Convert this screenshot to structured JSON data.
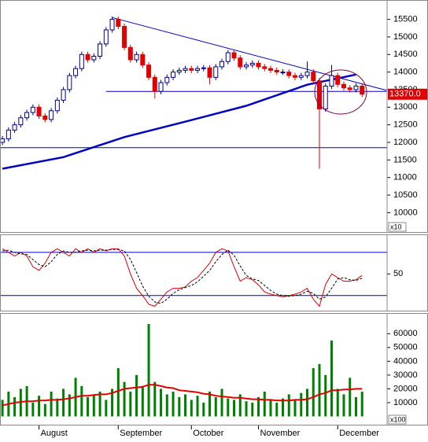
{
  "chart_data": [
    {
      "type": "candlestick",
      "xlim": [
        -0.4,
        63.1
      ],
      "ylim": [
        9450,
        16050
      ],
      "yticks": [
        10000,
        10500,
        11000,
        11500,
        12000,
        12500,
        13000,
        13500,
        14000,
        14500,
        15000,
        15500
      ],
      "axis_unit": "x10",
      "up_color": "#00008b",
      "down_color": "#e00000",
      "open": [
        12000,
        12100,
        12350,
        12500,
        12700,
        12850,
        13000,
        12750,
        12650,
        12900,
        13200,
        13500,
        13900,
        14100,
        14500,
        14350,
        14450,
        14800,
        15200,
        15500,
        15300,
        14700,
        14350,
        14500,
        14200,
        13850,
        13450,
        13700,
        13850,
        14000,
        14050,
        14100,
        14050,
        14100,
        14120,
        13850,
        14150,
        14300,
        14550,
        14400,
        14150,
        14200,
        14250,
        14150,
        14100,
        14050,
        14000,
        14000,
        13900,
        13850,
        13900,
        14000,
        13750,
        12950,
        13600,
        13900,
        13650,
        13550,
        13500,
        13600
      ],
      "high": [
        12180,
        12430,
        12580,
        12780,
        12930,
        13080,
        13080,
        12830,
        12980,
        13280,
        13580,
        13980,
        14180,
        14580,
        14580,
        14530,
        14880,
        15280,
        15580,
        15580,
        15380,
        14780,
        14580,
        14580,
        14280,
        13930,
        13780,
        13930,
        14080,
        14130,
        14180,
        14180,
        14180,
        14200,
        14200,
        14230,
        14380,
        14630,
        14630,
        14480,
        14280,
        14330,
        14330,
        14230,
        14180,
        14130,
        14080,
        14080,
        13980,
        13980,
        14300,
        14080,
        13830,
        13680,
        14200,
        13980,
        13730,
        13630,
        13680,
        13680
      ],
      "low": [
        11920,
        12020,
        12270,
        12420,
        12620,
        12770,
        12670,
        12570,
        12570,
        12820,
        13120,
        13420,
        13820,
        14020,
        14270,
        14270,
        14370,
        14720,
        15120,
        15220,
        14620,
        14270,
        14270,
        14120,
        13770,
        13250,
        13370,
        13620,
        13770,
        13920,
        13970,
        13970,
        13970,
        14020,
        13650,
        13770,
        14070,
        14220,
        14320,
        14070,
        14070,
        14120,
        14070,
        14020,
        13970,
        13920,
        13920,
        13820,
        13770,
        13770,
        13820,
        13670,
        11250,
        12870,
        13520,
        13570,
        13470,
        13420,
        13420,
        13290
      ],
      "close": [
        12100,
        12350,
        12500,
        12700,
        12850,
        13000,
        12750,
        12650,
        12900,
        13200,
        13500,
        13900,
        14100,
        14500,
        14350,
        14450,
        14800,
        15200,
        15500,
        15300,
        14700,
        14350,
        14500,
        14200,
        13850,
        13450,
        13700,
        13850,
        14000,
        14050,
        14100,
        14050,
        14100,
        14120,
        13850,
        14150,
        14300,
        14550,
        14400,
        14150,
        14200,
        14250,
        14150,
        14100,
        14050,
        14000,
        14000,
        13900,
        13850,
        13900,
        14000,
        13750,
        12950,
        13600,
        13900,
        13650,
        13550,
        13500,
        13600,
        13370
      ],
      "moving_average": {
        "color": "#0000c0",
        "x": [
          0,
          10,
          20,
          30,
          40,
          50,
          58
        ],
        "values": [
          11250,
          11580,
          12150,
          12590,
          13040,
          13640,
          13930
        ]
      },
      "trendline": {
        "color": "#0000c0",
        "x": [
          18,
          63
        ],
        "values": [
          15550,
          13480
        ]
      },
      "levels": [
        {
          "value": 13450,
          "x": [
            17,
            63
          ]
        },
        {
          "value": 11850,
          "x": [
            -0.4,
            63.1
          ]
        }
      ],
      "last_price": {
        "value": 13370,
        "label": "13370.0"
      }
    },
    {
      "type": "line",
      "xlim": [
        -0.4,
        63.1
      ],
      "ylim": [
        -1,
        105
      ],
      "yticks": [
        50
      ],
      "levels": [
        20,
        80
      ],
      "series": [
        {
          "color": "#e00000",
          "dash": false,
          "values": [
            85,
            80,
            75,
            80,
            75,
            60,
            55,
            65,
            80,
            85,
            80,
            75,
            85,
            80,
            85,
            80,
            85,
            82,
            85,
            85,
            75,
            50,
            30,
            20,
            8,
            5,
            15,
            25,
            30,
            30,
            32,
            40,
            45,
            55,
            65,
            80,
            85,
            82,
            60,
            40,
            45,
            42,
            35,
            25,
            22,
            20,
            18,
            20,
            22,
            25,
            30,
            15,
            5,
            35,
            50,
            45,
            40,
            40,
            42,
            48
          ]
        },
        {
          "color": "#000000",
          "dash": true,
          "values": [
            82,
            83,
            80,
            78,
            77,
            70,
            63,
            60,
            67,
            77,
            82,
            80,
            80,
            82,
            83,
            82,
            83,
            83,
            84,
            84,
            82,
            70,
            52,
            33,
            19,
            11,
            9,
            15,
            23,
            28,
            31,
            34,
            39,
            47,
            55,
            67,
            77,
            83,
            76,
            61,
            48,
            43,
            41,
            34,
            27,
            22,
            20,
            19,
            20,
            22,
            26,
            23,
            15,
            18,
            30,
            43,
            45,
            42,
            41,
            44
          ]
        }
      ]
    },
    {
      "type": "bar",
      "xlim": [
        -0.4,
        63.1
      ],
      "ylim": [
        -6000,
        75000
      ],
      "yticks": [
        10000,
        20000,
        30000,
        40000,
        50000,
        60000
      ],
      "axis_unit": "x100",
      "color": "#008000",
      "values": [
        12000,
        18000,
        14000,
        20000,
        22000,
        10000,
        15000,
        9000,
        18000,
        13000,
        20000,
        16000,
        28000,
        22000,
        14000,
        16000,
        18000,
        12000,
        20000,
        35000,
        25000,
        18000,
        30000,
        22000,
        67000,
        25000,
        20000,
        16000,
        18000,
        14000,
        16000,
        12000,
        15000,
        10000,
        18000,
        14000,
        20000,
        13000,
        12000,
        16000,
        11000,
        10000,
        14000,
        18000,
        12000,
        10000,
        13000,
        16000,
        12000,
        17000,
        20000,
        35000,
        38000,
        30000,
        55000,
        20000,
        16000,
        28000,
        14000,
        18000
      ],
      "moving_average": {
        "color": "#e00000",
        "values": [
          8000,
          9000,
          10000,
          10500,
          11000,
          11000,
          11500,
          11500,
          12000,
          12000,
          12500,
          13000,
          14000,
          15000,
          15000,
          15500,
          16000,
          16000,
          17000,
          18500,
          20000,
          20500,
          21000,
          21500,
          23000,
          23000,
          22000,
          21000,
          20500,
          19000,
          18500,
          18000,
          17500,
          16500,
          16000,
          15000,
          14500,
          14000,
          13500,
          13500,
          13000,
          12500,
          12500,
          12000,
          12000,
          11500,
          11500,
          11500,
          12000,
          12000,
          12500,
          14000,
          16000,
          17000,
          19000,
          19000,
          19500,
          19500,
          20000,
          20000
        ]
      },
      "x_labels": [
        {
          "index": 6,
          "label": "August"
        },
        {
          "index": 19,
          "label": "September"
        },
        {
          "index": 31,
          "label": "October"
        },
        {
          "index": 42,
          "label": "November"
        },
        {
          "index": 55,
          "label": "December"
        }
      ]
    }
  ]
}
